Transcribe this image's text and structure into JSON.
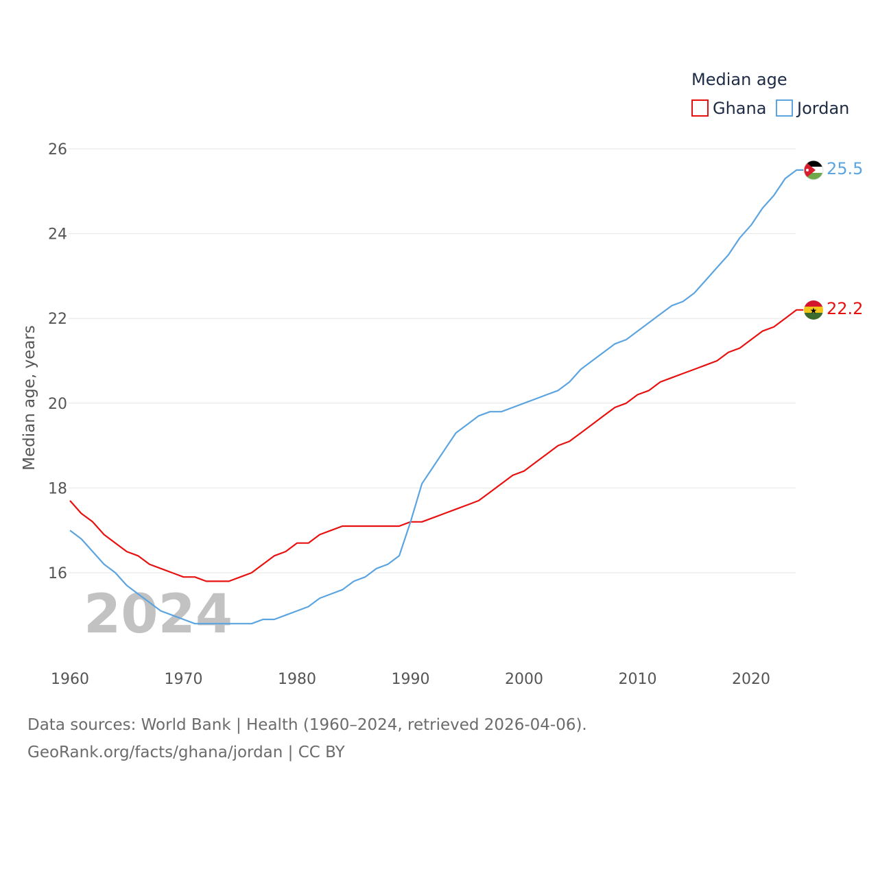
{
  "chart_data": {
    "type": "line",
    "title": "Median age",
    "xlabel": "",
    "ylabel": "Median age, years",
    "xlim": [
      1960,
      2024
    ],
    "ylim": [
      14.5,
      26.5
    ],
    "x_ticks": [
      "1960",
      "1970",
      "1980",
      "1990",
      "2000",
      "2010",
      "2020"
    ],
    "y_ticks": [
      "16",
      "18",
      "20",
      "22",
      "24",
      "26"
    ],
    "year_watermark": "2024",
    "x": [
      1960,
      1961,
      1962,
      1963,
      1964,
      1965,
      1966,
      1967,
      1968,
      1969,
      1970,
      1971,
      1972,
      1973,
      1974,
      1975,
      1976,
      1977,
      1978,
      1979,
      1980,
      1981,
      1982,
      1983,
      1984,
      1985,
      1986,
      1987,
      1988,
      1989,
      1990,
      1991,
      1992,
      1993,
      1994,
      1995,
      1996,
      1997,
      1998,
      1999,
      2000,
      2001,
      2002,
      2003,
      2004,
      2005,
      2006,
      2007,
      2008,
      2009,
      2010,
      2011,
      2012,
      2013,
      2014,
      2015,
      2016,
      2017,
      2018,
      2019,
      2020,
      2021,
      2022,
      2023,
      2024
    ],
    "series": [
      {
        "name": "Ghana",
        "color": "#e8100f",
        "end_label": "22.2",
        "values": [
          17.7,
          17.4,
          17.2,
          16.9,
          16.7,
          16.5,
          16.4,
          16.2,
          16.1,
          16.0,
          15.9,
          15.9,
          15.8,
          15.8,
          15.8,
          15.9,
          16.0,
          16.2,
          16.4,
          16.5,
          16.7,
          16.7,
          16.9,
          17.0,
          17.1,
          17.1,
          17.1,
          17.1,
          17.1,
          17.1,
          17.2,
          17.2,
          17.3,
          17.4,
          17.5,
          17.6,
          17.7,
          17.9,
          18.1,
          18.3,
          18.4,
          18.6,
          18.8,
          19.0,
          19.1,
          19.3,
          19.5,
          19.7,
          19.9,
          20.0,
          20.2,
          20.3,
          20.5,
          20.6,
          20.7,
          20.8,
          20.9,
          21.0,
          21.2,
          21.3,
          21.5,
          21.7,
          21.8,
          22.0,
          22.2
        ]
      },
      {
        "name": "Jordan",
        "color": "#5ba4e0",
        "end_label": "25.5",
        "values": [
          17.0,
          16.8,
          16.5,
          16.2,
          16.0,
          15.7,
          15.5,
          15.3,
          15.1,
          15.0,
          14.9,
          14.8,
          14.8,
          14.8,
          14.8,
          14.8,
          14.8,
          14.9,
          14.9,
          15.0,
          15.1,
          15.2,
          15.4,
          15.5,
          15.6,
          15.8,
          15.9,
          16.1,
          16.2,
          16.4,
          17.2,
          18.1,
          18.5,
          18.9,
          19.3,
          19.5,
          19.7,
          19.8,
          19.8,
          19.9,
          20.0,
          20.1,
          20.2,
          20.3,
          20.5,
          20.8,
          21.0,
          21.2,
          21.4,
          21.5,
          21.7,
          21.9,
          22.1,
          22.3,
          22.4,
          22.6,
          22.9,
          23.2,
          23.5,
          23.9,
          24.2,
          24.6,
          24.9,
          25.3,
          25.5
        ]
      }
    ]
  },
  "legend": {
    "title": "Median age",
    "items": [
      "Ghana",
      "Jordan"
    ]
  },
  "source": {
    "line1": "Data sources: World Bank | Health (1960–2024, retrieved 2026-04-06).",
    "line2": "GeoRank.org/facts/ghana/jordan | CC BY"
  }
}
